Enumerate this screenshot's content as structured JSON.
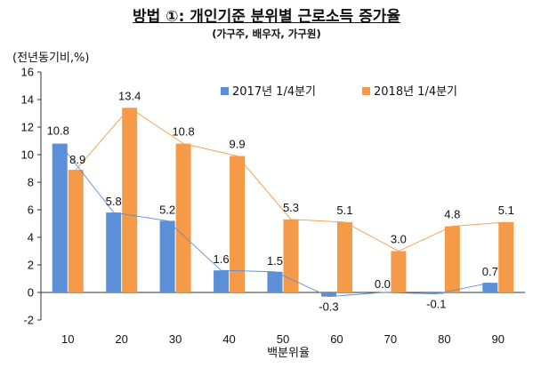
{
  "chart_data": {
    "type": "bar",
    "title": "방법 ①: 개인기준 분위별 근로소득 증가율",
    "subtitle": "(가구주, 배우자, 가구원)",
    "ylabel": "(전년동기비,%)",
    "xlabel": "백분위율",
    "categories": [
      "10",
      "20",
      "30",
      "40",
      "50",
      "60",
      "70",
      "80",
      "90"
    ],
    "ylim": [
      -2,
      16
    ],
    "yticks": [
      -2,
      0,
      2,
      4,
      6,
      8,
      10,
      12,
      14,
      16
    ],
    "legend_position": "top-right",
    "series": [
      {
        "name": "2017년 1/4분기",
        "color": "#5B8FD8",
        "values": [
          10.8,
          5.8,
          5.2,
          1.6,
          1.5,
          -0.3,
          0.0,
          -0.1,
          0.7
        ],
        "labels": [
          "10.8",
          "5.8",
          "5.2",
          "1.6",
          "1.5",
          "-0.3",
          "0.0",
          "-0.1",
          "0.7"
        ]
      },
      {
        "name": "2018년 1/4분기",
        "color": "#F59A48",
        "values": [
          8.9,
          13.4,
          10.8,
          9.9,
          5.3,
          5.1,
          3.0,
          4.8,
          5.1
        ],
        "labels": [
          "8.9",
          "13.4",
          "10.8",
          "9.9",
          "5.3",
          "5.1",
          "3.0",
          "4.8",
          "5.1"
        ]
      }
    ]
  }
}
